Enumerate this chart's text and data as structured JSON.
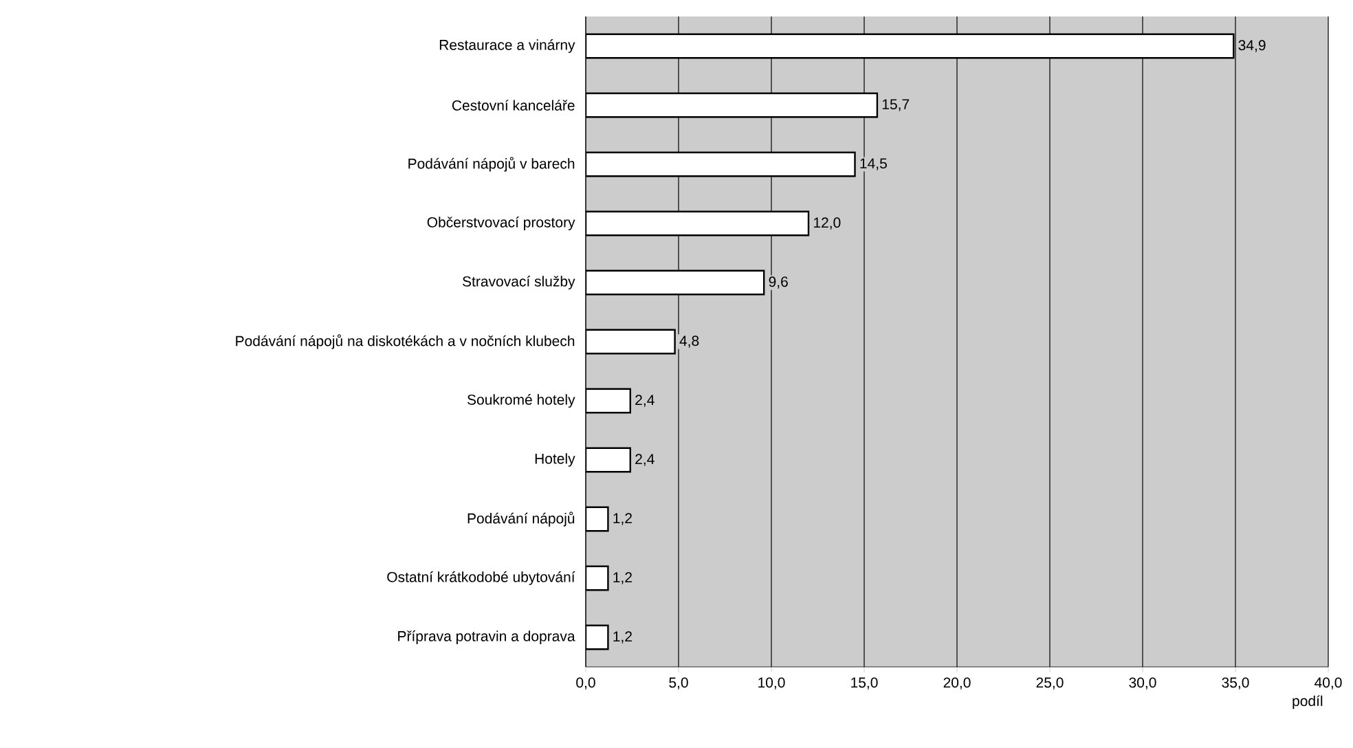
{
  "chart_data": {
    "type": "bar",
    "orientation": "horizontal",
    "xlabel": "podíl",
    "categories": [
      "Restaurace a vinárny",
      "Cestovní kanceláře",
      "Podávání nápojů v barech",
      "Občerstvovací prostory",
      "Stravovací služby",
      "Podávání nápojů na diskotékách a v nočních klubech",
      "Soukromé hotely",
      "Hotely",
      "Podávání nápojů",
      "Ostatní krátkodobé ubytování",
      "Příprava potravin a doprava"
    ],
    "values": [
      34.9,
      15.7,
      14.5,
      12.0,
      9.6,
      4.8,
      2.4,
      2.4,
      1.2,
      1.2,
      1.2
    ],
    "value_labels": [
      "34,9",
      "15,7",
      "14,5",
      "12,0",
      "9,6",
      "4,8",
      "2,4",
      "2,4",
      "1,2",
      "1,2",
      "1,2"
    ],
    "color": "#ffffff",
    "xlim": [
      0,
      40
    ],
    "xticks": [
      {
        "value": 0,
        "label": "0,0"
      },
      {
        "value": 5,
        "label": "5,0"
      },
      {
        "value": 10,
        "label": "10,0"
      },
      {
        "value": 15,
        "label": "15,0"
      },
      {
        "value": 20,
        "label": "20,0"
      },
      {
        "value": 25,
        "label": "25,0"
      },
      {
        "value": 30,
        "label": "30,0"
      },
      {
        "value": 35,
        "label": "35,0"
      },
      {
        "value": 40,
        "label": "40,0"
      }
    ],
    "grid": "x"
  }
}
